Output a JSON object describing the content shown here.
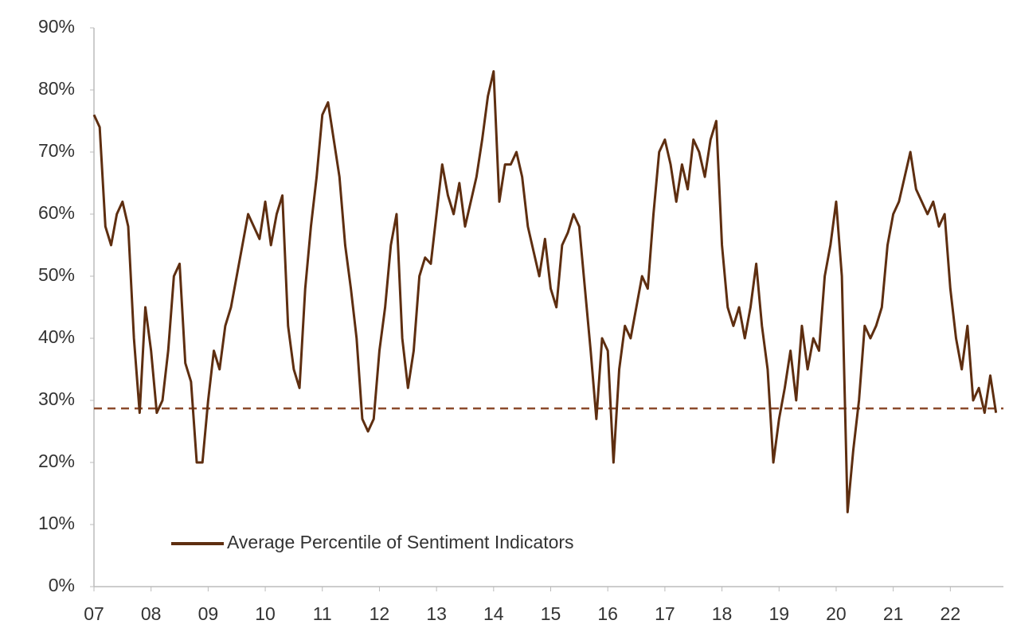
{
  "chart_data": {
    "type": "line",
    "x": [
      2007.0,
      2007.1,
      2007.2,
      2007.3,
      2007.4,
      2007.5,
      2007.6,
      2007.7,
      2007.8,
      2007.9,
      2008.0,
      2008.1,
      2008.2,
      2008.3,
      2008.4,
      2008.5,
      2008.6,
      2008.7,
      2008.8,
      2008.9,
      2009.0,
      2009.1,
      2009.2,
      2009.3,
      2009.4,
      2009.5,
      2009.6,
      2009.7,
      2009.8,
      2009.9,
      2010.0,
      2010.1,
      2010.2,
      2010.3,
      2010.4,
      2010.5,
      2010.6,
      2010.7,
      2010.8,
      2010.9,
      2011.0,
      2011.1,
      2011.2,
      2011.3,
      2011.4,
      2011.5,
      2011.6,
      2011.7,
      2011.8,
      2011.9,
      2012.0,
      2012.1,
      2012.2,
      2012.3,
      2012.4,
      2012.5,
      2012.6,
      2012.7,
      2012.8,
      2012.9,
      2013.0,
      2013.1,
      2013.2,
      2013.3,
      2013.4,
      2013.5,
      2013.6,
      2013.7,
      2013.8,
      2013.9,
      2014.0,
      2014.1,
      2014.2,
      2014.3,
      2014.4,
      2014.5,
      2014.6,
      2014.7,
      2014.8,
      2014.9,
      2015.0,
      2015.1,
      2015.2,
      2015.3,
      2015.4,
      2015.5,
      2015.6,
      2015.7,
      2015.8,
      2015.9,
      2016.0,
      2016.1,
      2016.2,
      2016.3,
      2016.4,
      2016.5,
      2016.6,
      2016.7,
      2016.8,
      2016.9,
      2017.0,
      2017.1,
      2017.2,
      2017.3,
      2017.4,
      2017.5,
      2017.6,
      2017.7,
      2017.8,
      2017.9,
      2018.0,
      2018.1,
      2018.2,
      2018.3,
      2018.4,
      2018.5,
      2018.6,
      2018.7,
      2018.8,
      2018.9,
      2019.0,
      2019.1,
      2019.2,
      2019.3,
      2019.4,
      2019.5,
      2019.6,
      2019.7,
      2019.8,
      2019.9,
      2020.0,
      2020.1,
      2020.2,
      2020.3,
      2020.4,
      2020.5,
      2020.6,
      2020.7,
      2020.8,
      2020.9,
      2021.0,
      2021.1,
      2021.2,
      2021.3,
      2021.4,
      2021.5,
      2021.6,
      2021.7,
      2021.8,
      2021.9,
      2022.0,
      2022.1,
      2022.2,
      2022.3,
      2022.4,
      2022.5,
      2022.6,
      2022.7,
      2022.8
    ],
    "series": [
      {
        "name": "Average Percentile of Sentiment Indicators",
        "color": "#5e2e10",
        "values": [
          76,
          74,
          58,
          55,
          60,
          62,
          58,
          40,
          28,
          45,
          38,
          28,
          30,
          38,
          50,
          52,
          36,
          33,
          20,
          20,
          30,
          38,
          35,
          42,
          45,
          50,
          55,
          60,
          58,
          56,
          62,
          55,
          60,
          63,
          42,
          35,
          32,
          48,
          58,
          66,
          76,
          78,
          72,
          66,
          55,
          48,
          40,
          27,
          25,
          27,
          38,
          45,
          55,
          60,
          40,
          32,
          38,
          50,
          53,
          52,
          60,
          68,
          63,
          60,
          65,
          58,
          62,
          66,
          72,
          79,
          83,
          62,
          68,
          68,
          70,
          66,
          58,
          54,
          50,
          56,
          48,
          45,
          55,
          57,
          60,
          58,
          48,
          38,
          27,
          40,
          38,
          20,
          35,
          42,
          40,
          45,
          50,
          48,
          60,
          70,
          72,
          68,
          62,
          68,
          64,
          72,
          70,
          66,
          72,
          75,
          55,
          45,
          42,
          45,
          40,
          45,
          52,
          42,
          35,
          20,
          27,
          32,
          38,
          30,
          42,
          35,
          40,
          38,
          50,
          55,
          62,
          50,
          12,
          22,
          30,
          42,
          40,
          42,
          45,
          55,
          60,
          62,
          66,
          70,
          64,
          62,
          60,
          62,
          58,
          60,
          48,
          40,
          35,
          42,
          30,
          32,
          28,
          34,
          28
        ]
      }
    ],
    "reference_line": {
      "value": 28.7,
      "color": "#8b4a2b"
    },
    "xlim": [
      2007,
      2022.93
    ],
    "xticks": [
      {
        "value": 2007,
        "label": "07"
      },
      {
        "value": 2008,
        "label": "08"
      },
      {
        "value": 2009,
        "label": "09"
      },
      {
        "value": 2010,
        "label": "10"
      },
      {
        "value": 2011,
        "label": "11"
      },
      {
        "value": 2012,
        "label": "12"
      },
      {
        "value": 2013,
        "label": "13"
      },
      {
        "value": 2014,
        "label": "14"
      },
      {
        "value": 2015,
        "label": "15"
      },
      {
        "value": 2016,
        "label": "16"
      },
      {
        "value": 2017,
        "label": "17"
      },
      {
        "value": 2018,
        "label": "18"
      },
      {
        "value": 2019,
        "label": "19"
      },
      {
        "value": 2020,
        "label": "20"
      },
      {
        "value": 2021,
        "label": "21"
      },
      {
        "value": 2022,
        "label": "22"
      }
    ],
    "ylim": [
      0,
      90
    ],
    "yticks": [
      {
        "value": 0,
        "label": "0%"
      },
      {
        "value": 10,
        "label": "10%"
      },
      {
        "value": 20,
        "label": "20%"
      },
      {
        "value": 30,
        "label": "30%"
      },
      {
        "value": 40,
        "label": "40%"
      },
      {
        "value": 50,
        "label": "50%"
      },
      {
        "value": 60,
        "label": "60%"
      },
      {
        "value": 70,
        "label": "70%"
      },
      {
        "value": 80,
        "label": "80%"
      },
      {
        "value": 90,
        "label": "90%"
      }
    ],
    "grid": false,
    "legend": "lower left"
  }
}
